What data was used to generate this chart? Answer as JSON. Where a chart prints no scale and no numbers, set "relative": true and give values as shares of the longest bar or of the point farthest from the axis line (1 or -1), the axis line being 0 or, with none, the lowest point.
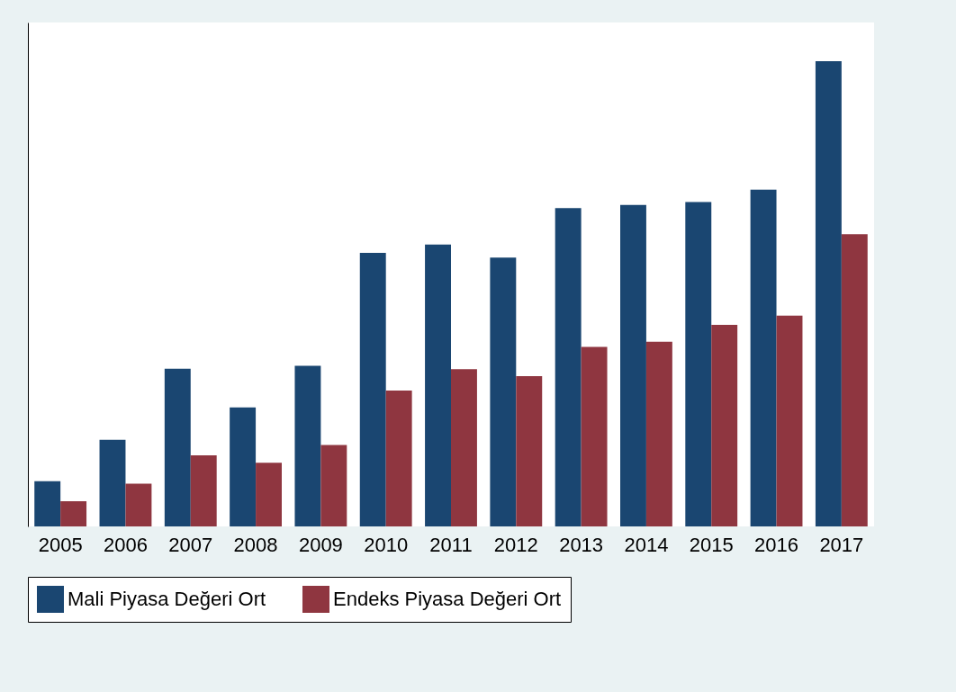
{
  "chart_data": {
    "type": "bar",
    "relative": true,
    "categories": [
      "2005",
      "2006",
      "2007",
      "2008",
      "2009",
      "2010",
      "2011",
      "2012",
      "2013",
      "2014",
      "2015",
      "2016",
      "2017"
    ],
    "series": [
      {
        "name": "Mali Piyasa Değeri Ort",
        "color": "#1a4671",
        "values": [
          0.097,
          0.186,
          0.339,
          0.256,
          0.345,
          0.588,
          0.606,
          0.578,
          0.684,
          0.691,
          0.697,
          0.724,
          1
        ]
      },
      {
        "name": "Endeks Piyasa Değeri Ort",
        "color": "#8f3640",
        "values": [
          0.054,
          0.092,
          0.153,
          0.137,
          0.175,
          0.292,
          0.338,
          0.323,
          0.386,
          0.397,
          0.433,
          0.453,
          0.628
        ]
      }
    ],
    "legend": "bottom"
  }
}
